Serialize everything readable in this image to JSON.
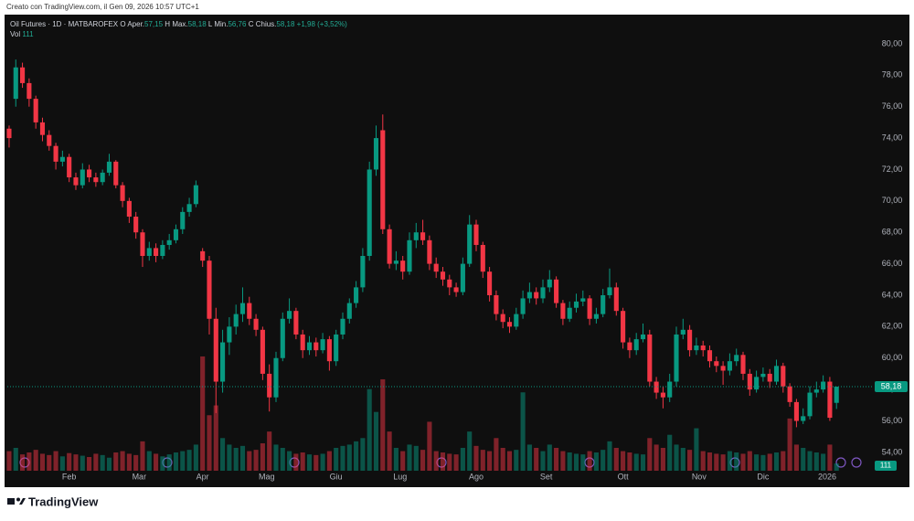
{
  "created": "Creato con TradingView.com, il Gen 09, 2026 10:57 UTC+1",
  "legend": {
    "symbol": "Oil Futures · 1D · MATBAROFEX",
    "open_key": "O",
    "open_name": "Aper.",
    "open": "57,15",
    "high_key": "H",
    "high_name": "Max.",
    "high": "58,18",
    "low_key": "L",
    "low_name": "Min.",
    "low": "56,76",
    "close_key": "C",
    "close_name": "Chius.",
    "close": "58,18",
    "change": "+1,98 (+3,52%)",
    "vol_name": "Vol",
    "vol": "111"
  },
  "footer": {
    "brand": "TradingView"
  },
  "chart_data": {
    "type": "candlestick",
    "up_color": "#089981",
    "down_color": "#f23645",
    "grid": false,
    "ylim": [
      52.83,
      81.8
    ],
    "yticks": [
      {
        "value": 54,
        "label": "54,00"
      },
      {
        "value": 56,
        "label": "56,00"
      },
      {
        "value": 58,
        "label": "58,00"
      },
      {
        "value": 60,
        "label": "60,00"
      },
      {
        "value": 62,
        "label": "62,00"
      },
      {
        "value": 64,
        "label": "64,00"
      },
      {
        "value": 66,
        "label": "66,00"
      },
      {
        "value": 68,
        "label": "68,00"
      },
      {
        "value": 70,
        "label": "70,00"
      },
      {
        "value": 72,
        "label": "72,00"
      },
      {
        "value": 74,
        "label": "74,00"
      },
      {
        "value": 76,
        "label": "76,00"
      },
      {
        "value": 78,
        "label": "78,00"
      },
      {
        "value": 80,
        "label": "80,00"
      }
    ],
    "xlim": [
      -0.27,
      129.45
    ],
    "xticks": [
      {
        "value": 9,
        "label": "Feb"
      },
      {
        "value": 19.5,
        "label": "Mar"
      },
      {
        "value": 29,
        "label": "Apr"
      },
      {
        "value": 38.6,
        "label": "Mag"
      },
      {
        "value": 49,
        "label": "Giu"
      },
      {
        "value": 58.6,
        "label": "Lug"
      },
      {
        "value": 70,
        "label": "Ago"
      },
      {
        "value": 80.5,
        "label": "Set"
      },
      {
        "value": 92,
        "label": "Ott"
      },
      {
        "value": 103.4,
        "label": "Nov"
      },
      {
        "value": 113,
        "label": "Dic"
      },
      {
        "value": 122.6,
        "label": "2026"
      }
    ],
    "last_price": {
      "value": 58.18,
      "label": "58,18"
    },
    "volume_ylim": [
      0,
      6970
    ],
    "candles": [
      [
        74.6,
        74.8,
        73.4,
        74.0
      ],
      [
        76.5,
        79.0,
        76.0,
        78.5
      ],
      [
        78.5,
        78.8,
        77.2,
        77.5
      ],
      [
        77.5,
        77.8,
        76.0,
        76.5
      ],
      [
        76.5,
        76.7,
        74.6,
        75.0
      ],
      [
        75.0,
        75.3,
        73.8,
        74.2
      ],
      [
        74.2,
        74.5,
        73.2,
        73.5
      ],
      [
        73.5,
        73.7,
        72.0,
        72.5
      ],
      [
        72.5,
        73.2,
        72.2,
        72.8
      ],
      [
        72.8,
        73.0,
        71.2,
        71.5
      ],
      [
        71.5,
        71.8,
        70.7,
        71.0
      ],
      [
        71.0,
        72.4,
        70.8,
        72.0
      ],
      [
        72.0,
        72.3,
        71.2,
        71.5
      ],
      [
        71.5,
        71.8,
        70.9,
        71.2
      ],
      [
        71.2,
        72.0,
        71.0,
        71.8
      ],
      [
        71.8,
        73.0,
        71.6,
        72.5
      ],
      [
        72.5,
        72.6,
        70.8,
        71.0
      ],
      [
        71.0,
        71.2,
        69.6,
        70.0
      ],
      [
        70.0,
        70.2,
        68.6,
        69.0
      ],
      [
        69.0,
        69.3,
        67.6,
        68.0
      ],
      [
        68.0,
        68.2,
        65.8,
        66.5
      ],
      [
        66.5,
        67.4,
        66.2,
        67.0
      ],
      [
        67.0,
        67.3,
        66.1,
        66.5
      ],
      [
        66.5,
        67.5,
        66.3,
        67.2
      ],
      [
        67.2,
        67.9,
        66.9,
        67.5
      ],
      [
        67.5,
        68.5,
        67.3,
        68.2
      ],
      [
        68.2,
        69.6,
        67.9,
        69.3
      ],
      [
        69.3,
        70.2,
        69.0,
        69.8
      ],
      [
        69.8,
        71.3,
        69.6,
        71.0
      ],
      [
        66.8,
        67.0,
        65.8,
        66.2
      ],
      [
        66.2,
        66.5,
        61.5,
        62.5
      ],
      [
        62.5,
        63.2,
        56.5,
        58.5
      ],
      [
        58.5,
        61.8,
        57.8,
        61.0
      ],
      [
        61.0,
        62.6,
        60.2,
        62.0
      ],
      [
        62.0,
        63.4,
        61.5,
        62.8
      ],
      [
        62.8,
        64.5,
        62.3,
        63.5
      ],
      [
        63.5,
        63.9,
        62.1,
        62.5
      ],
      [
        62.5,
        62.8,
        61.4,
        61.8
      ],
      [
        61.8,
        62.0,
        58.6,
        59.0
      ],
      [
        59.0,
        59.6,
        56.6,
        57.5
      ],
      [
        57.5,
        60.4,
        57.2,
        60.0
      ],
      [
        60.0,
        62.9,
        59.8,
        62.5
      ],
      [
        62.5,
        63.8,
        62.2,
        63.0
      ],
      [
        63.0,
        63.2,
        61.2,
        61.5
      ],
      [
        61.5,
        61.8,
        60.0,
        60.5
      ],
      [
        60.5,
        61.4,
        60.2,
        61.0
      ],
      [
        61.0,
        61.3,
        60.1,
        60.5
      ],
      [
        60.5,
        61.6,
        60.3,
        61.2
      ],
      [
        61.2,
        61.4,
        59.2,
        59.8
      ],
      [
        59.8,
        61.8,
        59.5,
        61.5
      ],
      [
        61.5,
        62.9,
        61.2,
        62.5
      ],
      [
        62.5,
        63.8,
        62.2,
        63.5
      ],
      [
        63.5,
        64.9,
        63.2,
        64.5
      ],
      [
        64.5,
        67.0,
        64.2,
        66.5
      ],
      [
        66.5,
        72.5,
        66.2,
        72.0
      ],
      [
        72.0,
        74.8,
        71.6,
        74.0
      ],
      [
        74.5,
        75.5,
        67.9,
        68.2
      ],
      [
        68.2,
        68.5,
        65.7,
        66.0
      ],
      [
        66.0,
        66.8,
        65.6,
        66.2
      ],
      [
        66.2,
        66.5,
        65.0,
        65.5
      ],
      [
        65.5,
        68.0,
        65.3,
        67.5
      ],
      [
        67.5,
        68.6,
        67.0,
        68.0
      ],
      [
        68.0,
        68.8,
        67.2,
        67.5
      ],
      [
        67.5,
        67.8,
        65.6,
        66.0
      ],
      [
        66.0,
        66.4,
        65.1,
        65.5
      ],
      [
        65.5,
        65.8,
        64.6,
        65.0
      ],
      [
        65.0,
        65.3,
        64.0,
        64.5
      ],
      [
        64.5,
        64.8,
        63.9,
        64.2
      ],
      [
        64.2,
        66.4,
        64.0,
        66.0
      ],
      [
        66.0,
        69.1,
        65.8,
        68.5
      ],
      [
        68.5,
        68.8,
        66.8,
        67.2
      ],
      [
        67.2,
        67.4,
        65.1,
        65.5
      ],
      [
        65.5,
        65.8,
        63.6,
        64.0
      ],
      [
        64.0,
        64.3,
        62.4,
        62.8
      ],
      [
        62.8,
        63.1,
        61.9,
        62.3
      ],
      [
        62.3,
        62.6,
        61.6,
        62.0
      ],
      [
        62.0,
        63.2,
        61.8,
        62.8
      ],
      [
        62.8,
        64.3,
        62.5,
        63.8
      ],
      [
        63.8,
        64.8,
        63.5,
        64.2
      ],
      [
        64.2,
        64.5,
        63.4,
        63.8
      ],
      [
        63.8,
        65.0,
        63.5,
        64.5
      ],
      [
        64.5,
        65.6,
        64.2,
        65.0
      ],
      [
        65.0,
        65.2,
        63.2,
        63.5
      ],
      [
        63.5,
        63.7,
        62.1,
        62.5
      ],
      [
        62.5,
        63.6,
        62.3,
        63.2
      ],
      [
        63.2,
        64.1,
        62.9,
        63.6
      ],
      [
        63.6,
        64.3,
        63.3,
        63.8
      ],
      [
        63.8,
        64.0,
        62.1,
        62.5
      ],
      [
        62.5,
        63.2,
        62.2,
        62.8
      ],
      [
        62.8,
        64.4,
        62.6,
        64.0
      ],
      [
        64.0,
        65.7,
        63.8,
        64.5
      ],
      [
        64.5,
        64.8,
        62.7,
        63.0
      ],
      [
        63.0,
        63.2,
        60.6,
        61.0
      ],
      [
        61.0,
        61.3,
        60.0,
        60.5
      ],
      [
        60.5,
        61.6,
        60.2,
        61.2
      ],
      [
        61.2,
        62.2,
        61.0,
        61.5
      ],
      [
        61.5,
        61.8,
        58.2,
        58.5
      ],
      [
        58.5,
        58.8,
        57.4,
        57.8
      ],
      [
        57.8,
        58.2,
        56.8,
        57.5
      ],
      [
        57.5,
        59.0,
        57.2,
        58.5
      ],
      [
        58.5,
        62.0,
        58.2,
        61.5
      ],
      [
        61.5,
        62.5,
        61.2,
        61.8
      ],
      [
        61.8,
        62.1,
        60.1,
        60.5
      ],
      [
        60.5,
        61.3,
        60.2,
        60.8
      ],
      [
        60.8,
        61.1,
        60.1,
        60.5
      ],
      [
        60.5,
        60.8,
        59.4,
        59.8
      ],
      [
        59.8,
        60.1,
        59.1,
        59.5
      ],
      [
        59.5,
        59.8,
        58.3,
        59.2
      ],
      [
        59.2,
        60.3,
        58.9,
        59.8
      ],
      [
        59.8,
        60.6,
        59.5,
        60.2
      ],
      [
        60.2,
        60.4,
        58.6,
        59.0
      ],
      [
        59.0,
        59.3,
        57.6,
        58.0
      ],
      [
        58.0,
        59.2,
        57.8,
        58.8
      ],
      [
        58.8,
        59.4,
        58.5,
        59.0
      ],
      [
        59.0,
        59.3,
        58.1,
        58.5
      ],
      [
        58.5,
        59.9,
        58.3,
        59.5
      ],
      [
        59.5,
        59.7,
        57.8,
        58.2
      ],
      [
        58.2,
        58.4,
        56.9,
        57.2
      ],
      [
        57.2,
        57.4,
        55.6,
        56.0
      ],
      [
        56.0,
        56.8,
        55.8,
        56.3
      ],
      [
        56.3,
        58.2,
        56.1,
        57.8
      ],
      [
        57.8,
        58.5,
        57.5,
        58.0
      ],
      [
        58.0,
        58.9,
        57.8,
        58.5
      ],
      [
        58.5,
        58.8,
        56.0,
        56.2
      ],
      [
        57.15,
        58.18,
        56.76,
        58.18
      ]
    ],
    "volume": [
      300,
      350,
      250,
      280,
      320,
      260,
      240,
      300,
      220,
      270,
      250,
      230,
      210,
      260,
      240,
      200,
      280,
      300,
      260,
      240,
      450,
      300,
      260,
      220,
      250,
      280,
      300,
      320,
      400,
      1750,
      850,
      1000,
      500,
      400,
      350,
      380,
      300,
      320,
      420,
      600,
      400,
      350,
      300,
      260,
      280,
      250,
      240,
      260,
      300,
      350,
      380,
      400,
      450,
      500,
      1250,
      900,
      1400,
      600,
      350,
      300,
      400,
      380,
      320,
      750,
      300,
      280,
      260,
      250,
      350,
      600,
      380,
      320,
      300,
      500,
      350,
      300,
      320,
      1200,
      400,
      350,
      300,
      400,
      350,
      300,
      280,
      260,
      250,
      300,
      280,
      320,
      450,
      350,
      300,
      280,
      260,
      250,
      500,
      400,
      350,
      550,
      400,
      350,
      320,
      650,
      300,
      280,
      260,
      250,
      300,
      280,
      260,
      300,
      250,
      240,
      260,
      280,
      300,
      800,
      400,
      350,
      300,
      280,
      260,
      400,
      111
    ]
  }
}
